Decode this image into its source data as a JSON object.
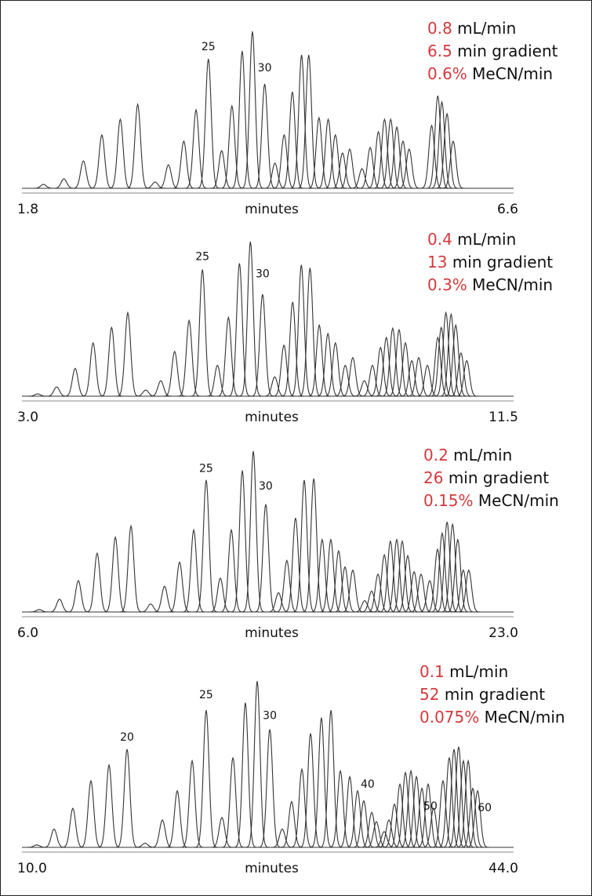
{
  "chart_data": [
    {
      "type": "chromatogram",
      "x_label": "minutes",
      "xlim": [
        1.8,
        6.6
      ],
      "xticks": [
        1.8,
        6.6
      ],
      "ylim": [
        0,
        100
      ],
      "color": "#333333",
      "x": [
        2.01,
        2.21,
        2.4,
        2.58,
        2.76,
        2.93,
        3.1,
        3.23,
        3.38,
        3.5,
        3.62,
        3.75,
        3.85,
        3.95,
        4.05,
        4.17,
        4.27,
        4.36,
        4.44,
        4.53,
        4.6,
        4.7,
        4.79,
        4.86,
        4.93,
        5.0,
        5.12,
        5.2,
        5.28,
        5.34,
        5.4,
        5.46,
        5.52,
        5.58,
        5.8,
        5.86,
        5.9,
        5.95,
        6.01
      ],
      "values": [
        2.5,
        6,
        17.5,
        34,
        44,
        53.5,
        4,
        15,
        30,
        50,
        82.5,
        24,
        52.5,
        87.5,
        100,
        66.5,
        16,
        34,
        61.5,
        85,
        85,
        45,
        44,
        34,
        22.5,
        25,
        12.5,
        26,
        36,
        44,
        44,
        39,
        30,
        25,
        40,
        59,
        55,
        47.5,
        30
      ],
      "annotations": [
        {
          "text": "25",
          "x": 3.62,
          "y": 90
        },
        {
          "text": "30",
          "x": 4.17,
          "y": 76.5
        }
      ],
      "conditions": [
        {
          "value": "0.8",
          "label": "mL/min"
        },
        {
          "value": "6.5",
          "label": "min gradient"
        },
        {
          "value": "0.6%",
          "label": "MeCN/min"
        }
      ]
    },
    {
      "type": "chromatogram",
      "x_label": "minutes",
      "xlim": [
        3.0,
        11.5
      ],
      "xticks": [
        {
          "value": 3,
          "label": "3.0"
        },
        11.5
      ],
      "ylim": [
        0,
        100
      ],
      "color": "#333333",
      "x": [
        3.27,
        3.6,
        3.92,
        4.23,
        4.55,
        4.83,
        5.14,
        5.4,
        5.64,
        5.89,
        6.12,
        6.38,
        6.57,
        6.76,
        6.95,
        7.16,
        7.37,
        7.53,
        7.68,
        7.83,
        7.98,
        8.14,
        8.29,
        8.42,
        8.59,
        8.72,
        8.92,
        9.06,
        9.2,
        9.3,
        9.41,
        9.52,
        9.63,
        9.74,
        9.86,
        10.01,
        10.19,
        10.25,
        10.33,
        10.42,
        10.5,
        10.59,
        10.69
      ],
      "values": [
        1.5,
        6,
        18,
        34.5,
        44.5,
        54,
        4,
        10,
        29,
        49,
        82,
        20,
        51,
        86,
        100,
        66,
        12.5,
        33,
        61,
        85,
        83,
        46,
        40.5,
        34.5,
        20,
        25,
        10,
        20,
        31.5,
        38,
        44,
        43,
        34.5,
        23,
        25,
        20,
        38,
        44.5,
        54,
        53,
        46,
        28,
        23
      ],
      "annotations": [
        {
          "text": "25",
          "x": 6.12,
          "y": 90
        },
        {
          "text": "30",
          "x": 7.16,
          "y": 79
        }
      ],
      "conditions": [
        {
          "value": "0.4",
          "label": "mL/min"
        },
        {
          "value": "13",
          "label": "min gradient"
        },
        {
          "value": "0.3%",
          "label": "MeCN/min"
        }
      ]
    },
    {
      "type": "chromatogram",
      "x_label": "minutes",
      "xlim": [
        6.0,
        23.0
      ],
      "xticks": [
        {
          "value": 6,
          "label": "6.0"
        },
        {
          "value": 23,
          "label": "23.0"
        }
      ],
      "ylim": [
        0,
        100
      ],
      "color": "#333333",
      "x": [
        6.6,
        7.3,
        7.95,
        8.6,
        9.23,
        9.77,
        10.45,
        10.93,
        11.45,
        11.94,
        12.37,
        12.86,
        13.24,
        13.62,
        14.0,
        14.43,
        14.87,
        15.16,
        15.46,
        15.76,
        16.09,
        16.38,
        16.68,
        16.95,
        17.17,
        17.44,
        17.85,
        18.09,
        18.31,
        18.53,
        18.74,
        18.96,
        19.15,
        19.34,
        19.56,
        19.8,
        20.1,
        20.37,
        20.53,
        20.7,
        20.89,
        21.07,
        21.26,
        21.45
      ],
      "values": [
        1.5,
        8,
        19.5,
        36.5,
        46.5,
        53.5,
        5,
        16,
        31,
        51,
        82,
        21,
        51,
        88,
        100,
        67,
        12,
        32,
        58.5,
        82,
        83,
        45,
        45,
        38,
        28,
        26,
        7,
        13,
        23.5,
        35.5,
        44,
        45,
        44,
        35,
        25,
        23.5,
        19.5,
        39,
        49,
        56,
        54.5,
        45,
        26,
        26
      ],
      "annotations": [
        {
          "text": "25",
          "x": 12.37,
          "y": 89
        },
        {
          "text": "30",
          "x": 14.43,
          "y": 78
        }
      ],
      "conditions": [
        {
          "value": "0.2",
          "label": "mL/min"
        },
        {
          "value": "26",
          "label": "min gradient"
        },
        {
          "value": "0.15%",
          "label": "MeCN/min"
        }
      ]
    },
    {
      "type": "chromatogram",
      "x_label": "minutes",
      "xlim": [
        10.0,
        44.0
      ],
      "xticks": [
        {
          "value": 10,
          "label": "10.0"
        },
        {
          "value": 44,
          "label": "44.0"
        }
      ],
      "ylim": [
        0,
        100
      ],
      "color": "#333333",
      "x": [
        11.03,
        12.22,
        13.52,
        14.77,
        16.02,
        17.27,
        18.51,
        19.71,
        20.74,
        21.77,
        22.74,
        23.83,
        24.59,
        25.45,
        26.27,
        27.14,
        28.0,
        28.65,
        29.36,
        29.96,
        30.71,
        31.37,
        32.02,
        32.67,
        33.21,
        33.64,
        34.19,
        34.51,
        35.05,
        35.38,
        35.76,
        36.14,
        36.52,
        36.9,
        37.28,
        37.66,
        38.09,
        38.47,
        39.12,
        39.55,
        39.88,
        40.2,
        40.53,
        40.86,
        41.18,
        41.51
      ],
      "values": [
        1.5,
        11,
        23.5,
        40,
        49.5,
        59,
        2.5,
        16.5,
        34,
        52,
        82.5,
        18,
        54,
        87,
        100,
        71,
        11,
        27.5,
        47,
        68.5,
        78,
        82.5,
        46,
        42.5,
        34,
        28,
        21,
        15.5,
        9.5,
        16.5,
        26,
        38,
        45,
        46,
        42.5,
        35.5,
        38,
        23.5,
        40,
        54,
        59,
        60.5,
        52,
        52,
        35.5,
        34
      ],
      "annotations": [
        {
          "text": "20",
          "x": 17.27,
          "y": 66
        },
        {
          "text": "25",
          "x": 22.74,
          "y": 91.5
        },
        {
          "text": "30",
          "x": 27.14,
          "y": 79
        },
        {
          "text": "40",
          "x": 33.91,
          "y": 37.7
        },
        {
          "text": "50",
          "x": 38.25,
          "y": 24.5
        },
        {
          "text": "60",
          "x": 42.0,
          "y": 23.6
        }
      ],
      "conditions": [
        {
          "value": "0.1",
          "label": "mL/min"
        },
        {
          "value": "52",
          "label": "min gradient"
        },
        {
          "value": "0.075%",
          "label": "MeCN/min"
        }
      ]
    }
  ]
}
